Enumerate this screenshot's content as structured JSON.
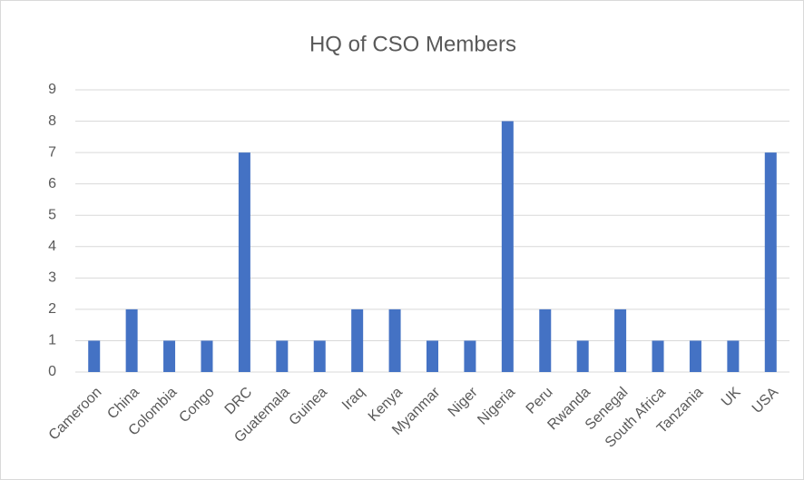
{
  "chart_data": {
    "type": "bar",
    "title": "HQ of CSO Members",
    "categories": [
      "Cameroon",
      "China",
      "Colombia",
      "Congo",
      "DRC",
      "Guatemala",
      "Guinea",
      "Iraq",
      "Kenya",
      "Myanmar",
      "Niger",
      "Nigeria",
      "Peru",
      "Rwanda",
      "Senegal",
      "South Africa",
      "Tanzania",
      "UK",
      "USA"
    ],
    "values": [
      1,
      2,
      1,
      1,
      7,
      1,
      1,
      2,
      2,
      1,
      1,
      8,
      2,
      1,
      2,
      1,
      1,
      1,
      7
    ],
    "color": "#4472c4",
    "ylim": [
      0,
      9
    ],
    "yticks": [
      0,
      1,
      2,
      3,
      4,
      5,
      6,
      7,
      8,
      9
    ],
    "grid": true
  }
}
